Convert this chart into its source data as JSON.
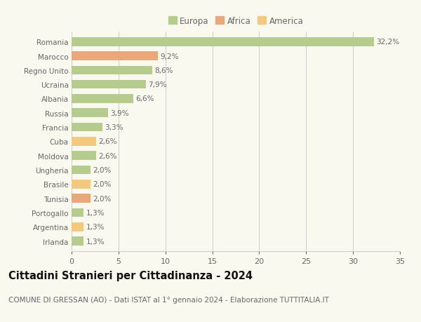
{
  "countries": [
    "Romania",
    "Marocco",
    "Regno Unito",
    "Ucraina",
    "Albania",
    "Russia",
    "Francia",
    "Cuba",
    "Moldova",
    "Ungheria",
    "Brasile",
    "Tunisia",
    "Portogallo",
    "Argentina",
    "Irlanda"
  ],
  "values": [
    32.2,
    9.2,
    8.6,
    7.9,
    6.6,
    3.9,
    3.3,
    2.6,
    2.6,
    2.0,
    2.0,
    2.0,
    1.3,
    1.3,
    1.3
  ],
  "labels": [
    "32,2%",
    "9,2%",
    "8,6%",
    "7,9%",
    "6,6%",
    "3,9%",
    "3,3%",
    "2,6%",
    "2,6%",
    "2,0%",
    "2,0%",
    "2,0%",
    "1,3%",
    "1,3%",
    "1,3%"
  ],
  "continents": [
    "Europa",
    "Africa",
    "Europa",
    "Europa",
    "Europa",
    "Europa",
    "Europa",
    "America",
    "Europa",
    "Europa",
    "America",
    "Africa",
    "Europa",
    "America",
    "Europa"
  ],
  "colors": {
    "Europa": "#b5cc8e",
    "Africa": "#e8a87c",
    "America": "#f2c97e"
  },
  "xlim": [
    0,
    35
  ],
  "xticks": [
    0,
    5,
    10,
    15,
    20,
    25,
    30,
    35
  ],
  "title": "Cittadini Stranieri per Cittadinanza - 2024",
  "subtitle": "COMUNE DI GRESSAN (AO) - Dati ISTAT al 1° gennaio 2024 - Elaborazione TUTTITALIA.IT",
  "background_color": "#f9f9f0",
  "bar_height": 0.62,
  "grid_color": "#cccccc",
  "text_color": "#666666",
  "title_color": "#111111",
  "label_fontsize": 7.5,
  "ytick_fontsize": 7.5,
  "xtick_fontsize": 8,
  "title_fontsize": 10.5,
  "subtitle_fontsize": 7.5,
  "legend_fontsize": 8.5
}
